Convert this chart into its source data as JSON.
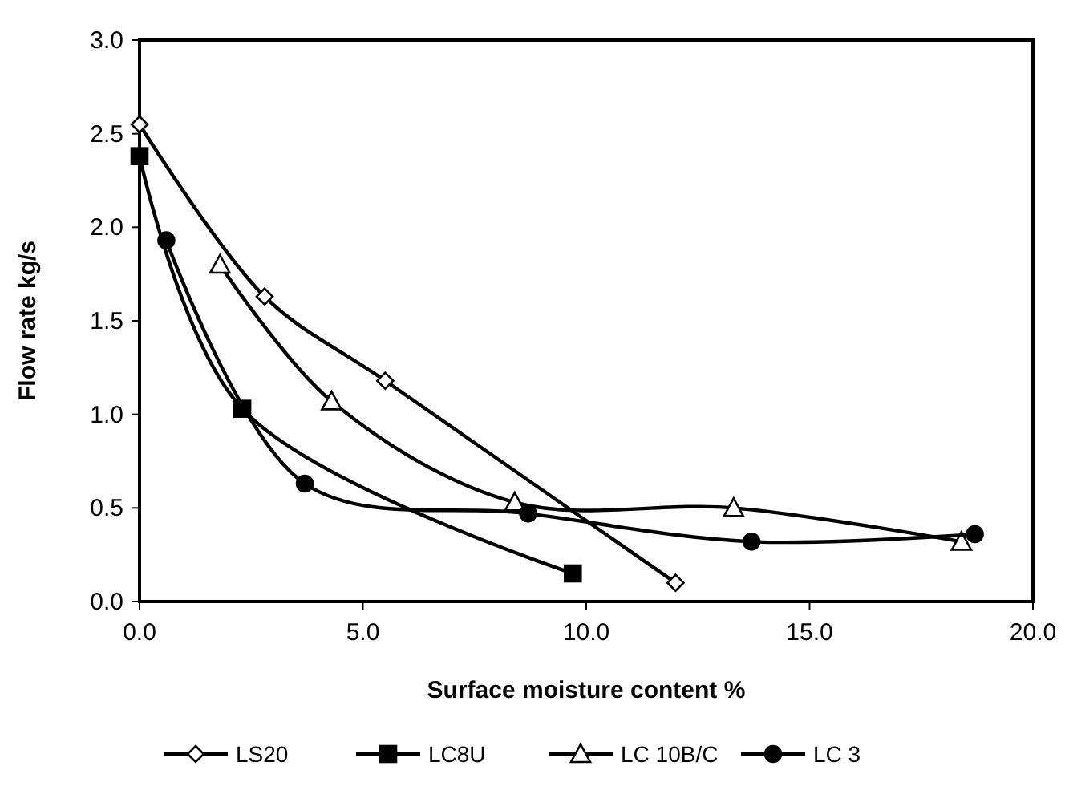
{
  "chart_data": {
    "type": "line",
    "xlabel": "Surface moisture content %",
    "ylabel": "Flow rate kg/s",
    "xlim": [
      0,
      20
    ],
    "ylim": [
      0,
      3
    ],
    "xticks": [
      {
        "value": 0,
        "label": "0.0"
      },
      {
        "value": 5,
        "label": "5.0"
      },
      {
        "value": 10,
        "label": "10.0"
      },
      {
        "value": 15,
        "label": "15.0"
      },
      {
        "value": 20,
        "label": "20.0"
      }
    ],
    "yticks": [
      {
        "value": 0,
        "label": "0.0"
      },
      {
        "value": 0.5,
        "label": "0.5"
      },
      {
        "value": 1,
        "label": "1.0"
      },
      {
        "value": 1.5,
        "label": "1.5"
      },
      {
        "value": 2,
        "label": "2.0"
      },
      {
        "value": 2.5,
        "label": "2.5"
      },
      {
        "value": 3,
        "label": "3.0"
      }
    ],
    "grid": false,
    "legend": "bottom",
    "line_style": "solid",
    "series": [
      {
        "name": "LS20",
        "color": "#000000",
        "marker": "diamond",
        "x": [
          0,
          2.8,
          5.5,
          12.0
        ],
        "values": [
          2.55,
          1.63,
          1.18,
          0.1
        ]
      },
      {
        "name": "LC8U",
        "color": "#000000",
        "marker": "square",
        "x": [
          0,
          2.3,
          9.7
        ],
        "values": [
          2.38,
          1.03,
          0.15
        ]
      },
      {
        "name": "LC 10B/C",
        "color": "#000000",
        "marker": "triangle",
        "x": [
          1.8,
          4.3,
          8.4,
          13.3,
          18.4
        ],
        "values": [
          1.8,
          1.07,
          0.53,
          0.5,
          0.32
        ]
      },
      {
        "name": "LC 3",
        "color": "#000000",
        "marker": "circle",
        "x": [
          0.6,
          3.7,
          8.7,
          13.7,
          18.7
        ],
        "values": [
          1.93,
          0.63,
          0.47,
          0.32,
          0.36
        ]
      }
    ]
  }
}
